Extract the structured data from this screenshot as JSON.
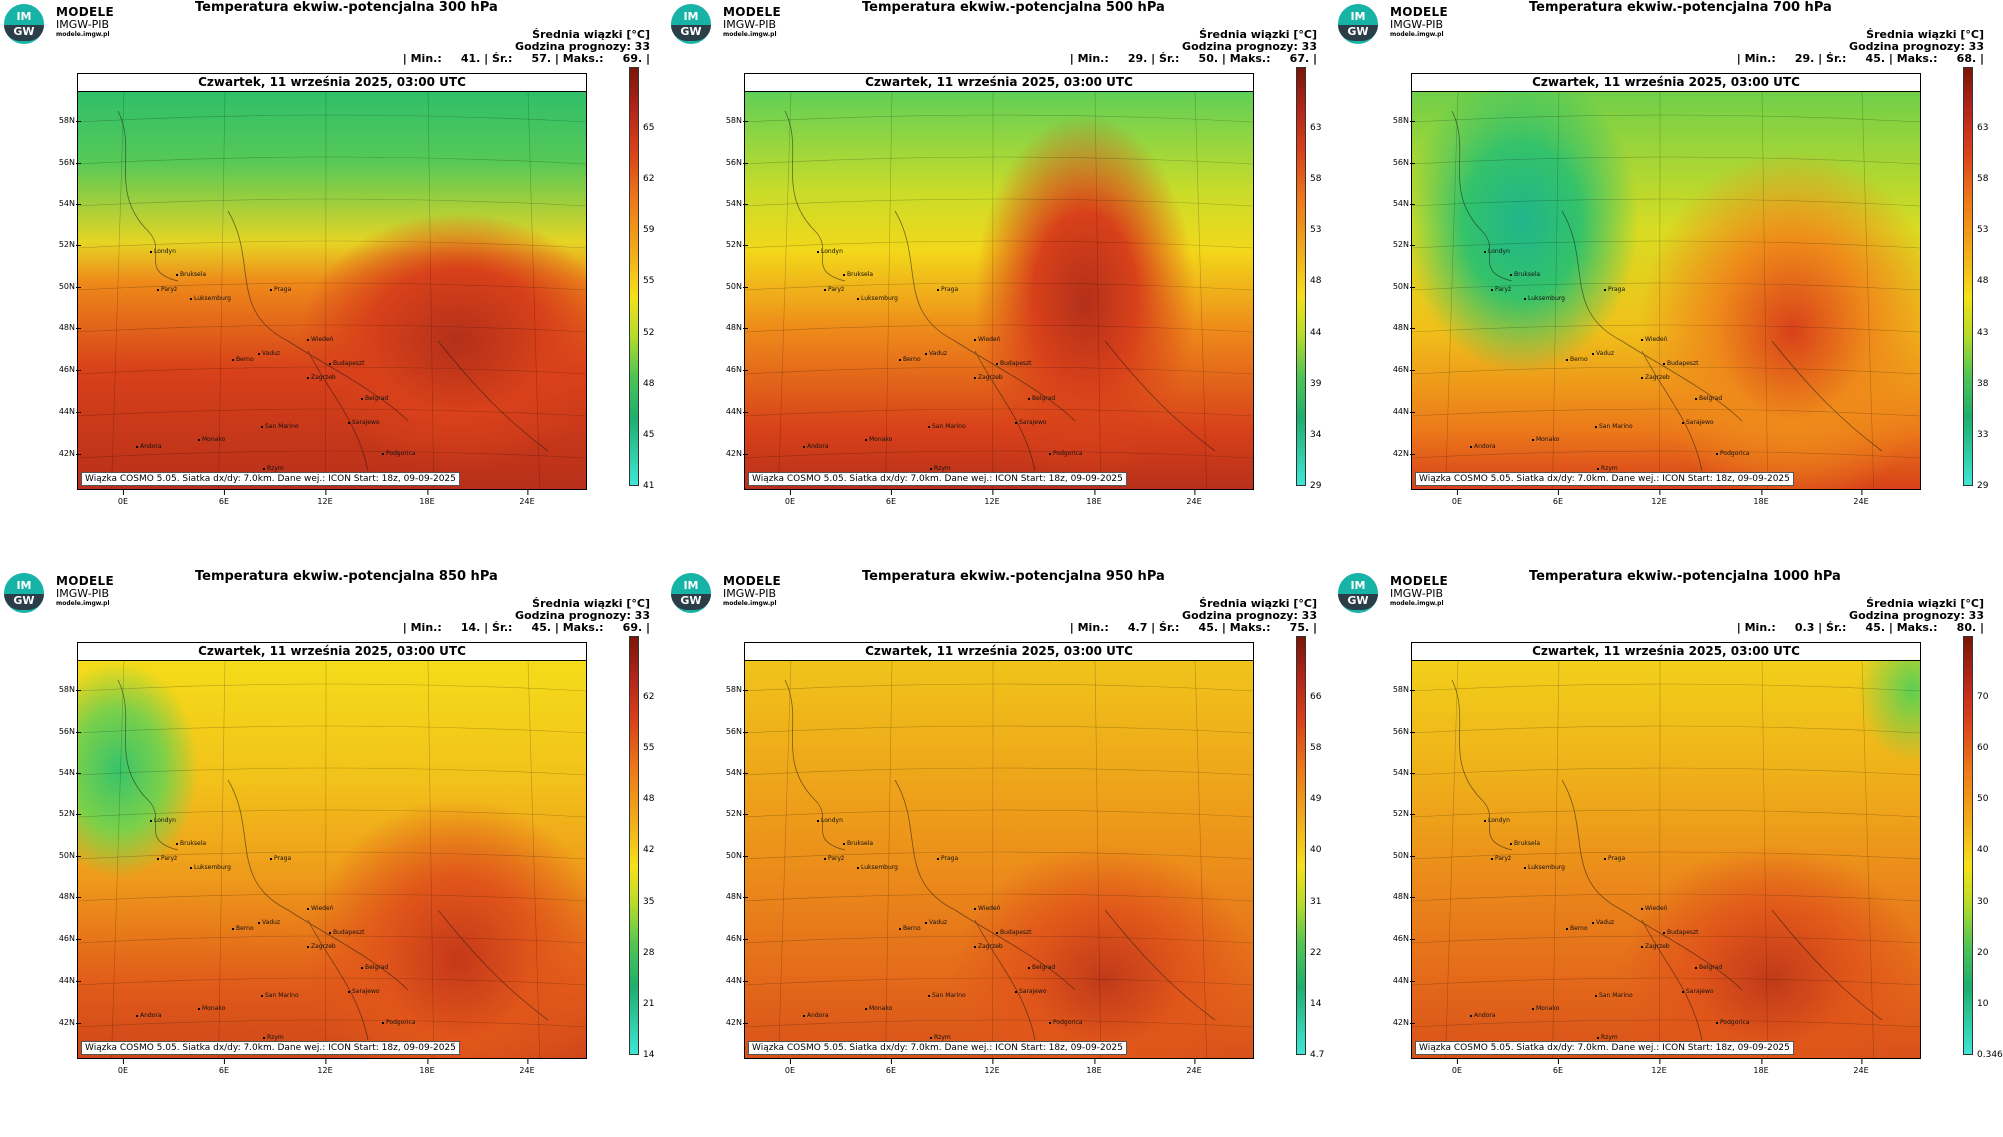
{
  "org": {
    "name": "MODELE",
    "sub": "IMGW-PIB",
    "url": "modele.imgw.pl",
    "logo_top": "IM",
    "logo_bottom": "GW"
  },
  "lat_labels": [
    "58N",
    "56N",
    "54N",
    "52N",
    "50N",
    "48N",
    "46N",
    "44N",
    "42N"
  ],
  "lon_labels": [
    "0E",
    "6E",
    "12E",
    "18E",
    "24E"
  ],
  "cities": [
    "Londyn",
    "Bruksela",
    "Paryż",
    "Luksemburg",
    "Praga",
    "Wiedeń",
    "Budapeszt",
    "Berno",
    "Vaduz",
    "Zagrzeb",
    "Belgrad",
    "San Marino",
    "Sarajewo",
    "Podgorica",
    "Andora",
    "Monako",
    "Rzym"
  ],
  "panels": [
    {
      "title": "Temperatura ekwiw.-potencjalna 300 hPa",
      "stat_line1": "Średnia wiązki [°C]",
      "stat_line2": "Godzina prognozy: 33",
      "stat_line3": "| Min.:     41. | Śr.:     57. | Maks.:     69. |",
      "date": "Czwartek, 11 września 2025, 03:00 UTC",
      "footer": "Wiązka COSMO 5.05. Siatka dx/dy: 7.0km. Dane wej.: ICON Start: 18z, 09-09-2025",
      "scale": [
        "65",
        "62",
        "59",
        "55",
        "52",
        "48",
        "45",
        "41"
      ],
      "pattern": "p300"
    },
    {
      "title": "Temperatura ekwiw.-potencjalna 500 hPa",
      "stat_line1": "Średnia wiązki [°C]",
      "stat_line2": "Godzina prognozy: 33",
      "stat_line3": "| Min.:     29. | Śr.:     50. | Maks.:     67. |",
      "date": "Czwartek, 11 września 2025, 03:00 UTC",
      "footer": "Wiązka COSMO 5.05. Siatka dx/dy: 7.0km. Dane wej.: ICON Start: 18z, 09-09-2025",
      "scale": [
        "63",
        "58",
        "53",
        "48",
        "44",
        "39",
        "34",
        "29"
      ],
      "pattern": "p500"
    },
    {
      "title": "Temperatura ekwiw.-potencjalna 700 hPa",
      "stat_line1": "Średnia wiązki [°C]",
      "stat_line2": "Godzina prognozy: 33",
      "stat_line3": "| Min.:     29. | Śr.:     45. | Maks.:     68. |",
      "date": "Czwartek, 11 września 2025, 03:00 UTC",
      "footer": "Wiązka COSMO 5.05. Siatka dx/dy: 7.0km. Dane wej.: ICON Start: 18z, 09-09-2025",
      "scale": [
        "63",
        "58",
        "53",
        "48",
        "43",
        "38",
        "33",
        "29"
      ],
      "pattern": "p700"
    },
    {
      "title": "Temperatura ekwiw.-potencjalna 850 hPa",
      "stat_line1": "Średnia wiązki [°C]",
      "stat_line2": "Godzina prognozy: 33",
      "stat_line3": "| Min.:     14. | Śr.:     45. | Maks.:     69. |",
      "date": "Czwartek, 11 września 2025, 03:00 UTC",
      "footer": "Wiązka COSMO 5.05. Siatka dx/dy: 7.0km. Dane wej.: ICON Start: 18z, 09-09-2025",
      "scale": [
        "62",
        "55",
        "48",
        "42",
        "35",
        "28",
        "21",
        "14"
      ],
      "pattern": "p850"
    },
    {
      "title": "Temperatura ekwiw.-potencjalna 950 hPa",
      "stat_line1": "Średnia wiązki [°C]",
      "stat_line2": "Godzina prognozy: 33",
      "stat_line3": "| Min.:     4.7 | Śr.:     45. | Maks.:     75. |",
      "date": "Czwartek, 11 września 2025, 03:00 UTC",
      "footer": "Wiązka COSMO 5.05. Siatka dx/dy: 7.0km. Dane wej.: ICON Start: 18z, 09-09-2025",
      "scale": [
        "66",
        "58",
        "49",
        "40",
        "31",
        "22",
        "14",
        "4.7"
      ],
      "pattern": "p950"
    },
    {
      "title": "Temperatura ekwiw.-potencjalna 1000 hPa",
      "stat_line1": "Średnia wiązki [°C]",
      "stat_line2": "Godzina prognozy: 33",
      "stat_line3": "| Min.:     0.3 | Śr.:     45. | Maks.:     80. |",
      "date": "Czwartek, 11 września 2025, 03:00 UTC",
      "footer": "Wiązka COSMO 5.05. Siatka dx/dy: 7.0km. Dane wej.: ICON Start: 18z, 09-09-2025",
      "scale": [
        "70",
        "60",
        "50",
        "40",
        "30",
        "20",
        "10",
        "0.346"
      ],
      "pattern": "p1000"
    }
  ],
  "colors": {
    "green": "#2fbf6a",
    "yellow": "#f5e11a",
    "orange": "#ee8a1a",
    "red": "#d8411a",
    "darkred": "#8a1a0e",
    "cyan": "#3fe6d6"
  }
}
